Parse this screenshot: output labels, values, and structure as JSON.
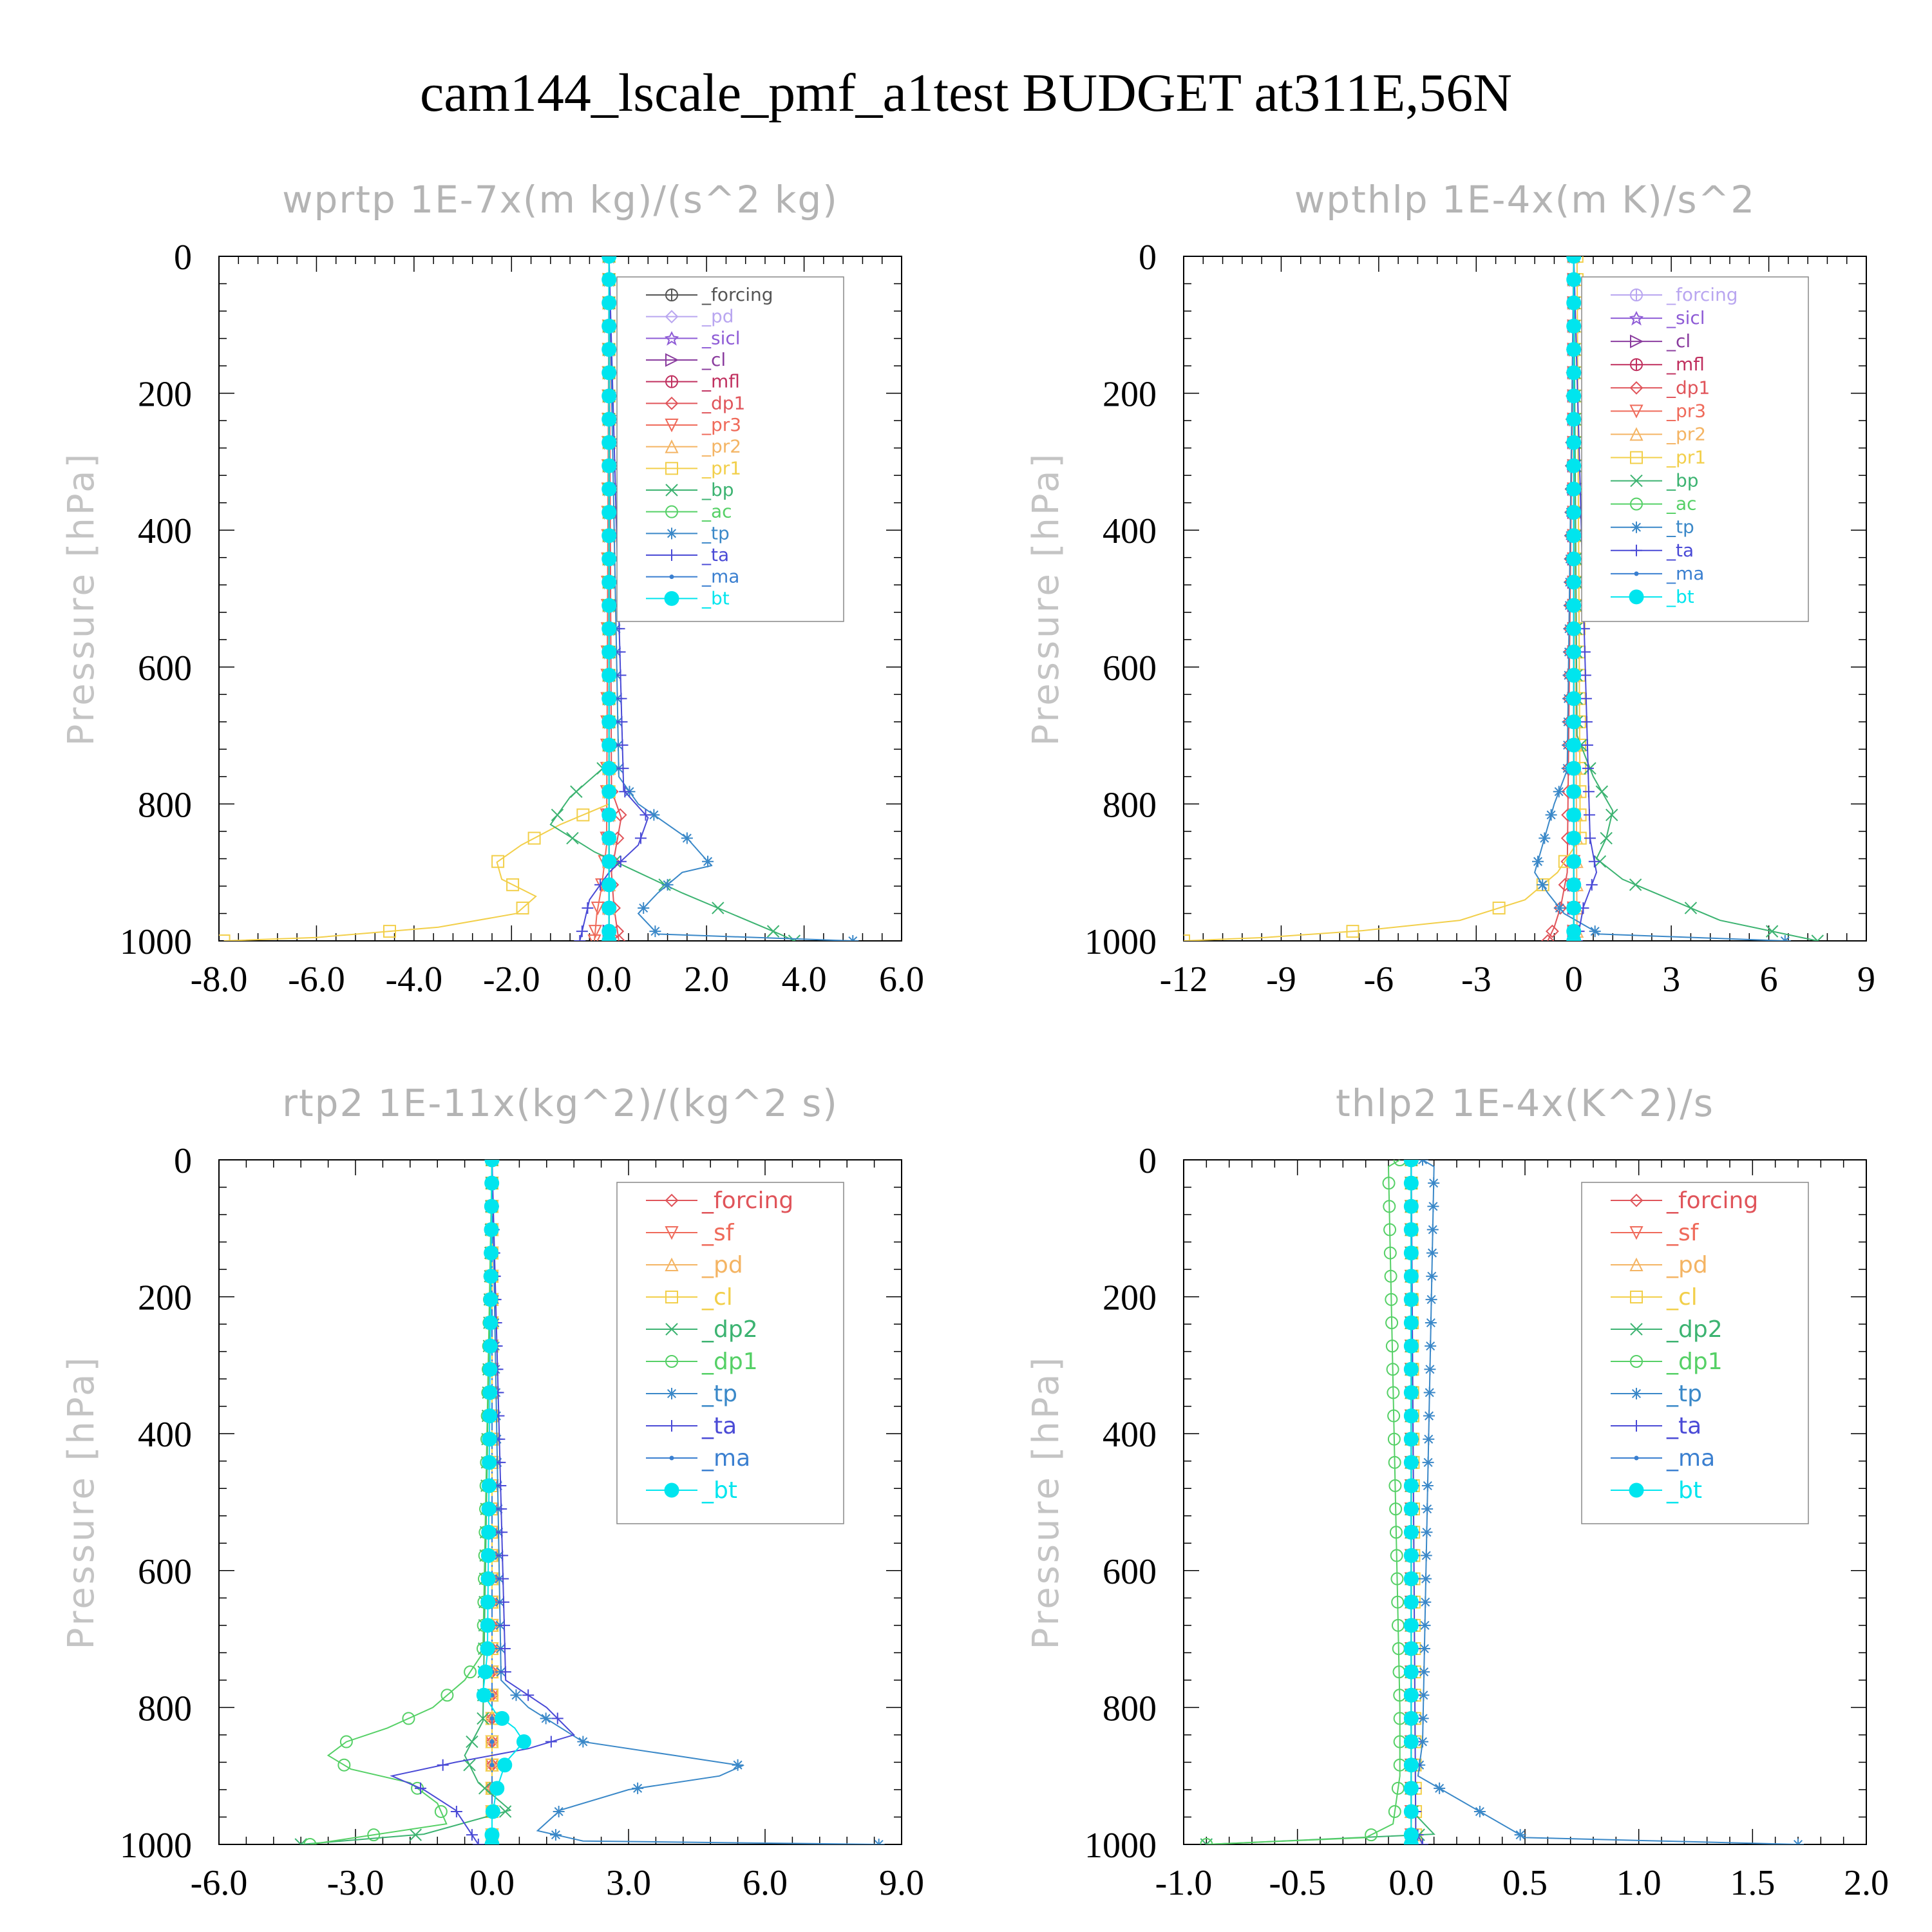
{
  "title": "cam144_lscale_pmf_a1test  BUDGET at311E,56N",
  "chart_data": [
    {
      "type": "line",
      "title": "wprtp  1E-7x(m kg)/(s^2 kg)",
      "ylabel": "Pressure [hPa]",
      "xlim": [
        -8,
        6
      ],
      "ylim": [
        0,
        1000
      ],
      "y_inverted": true,
      "xticks": [
        "-8.0",
        "-6.0",
        "-4.0",
        "-2.0",
        "0.0",
        "2.0",
        "4.0",
        "6.0"
      ],
      "xtick_values": [
        -8,
        -6,
        -4,
        -2,
        0,
        2,
        4,
        6
      ],
      "yticks": [
        "0",
        "200",
        "400",
        "600",
        "800",
        "1000"
      ],
      "legend_placement": "upper-right",
      "legend": [
        "_forcing",
        "_pd",
        "_sicl",
        "_cl",
        "_mfl",
        "_dp1",
        "_pr3",
        "_pr2",
        "_pr1",
        "_bp",
        "_ac",
        "_tp",
        "_ta",
        "_ma",
        "_bt"
      ],
      "series": [
        {
          "name": "_forcing",
          "color": "#555555",
          "marker": "circle-plus",
          "y": [
            0,
            1000
          ],
          "x": [
            0,
            0
          ]
        },
        {
          "name": "_pd",
          "color": "#b9a6f0",
          "marker": "diamond",
          "y": [
            0,
            1000
          ],
          "x": [
            0,
            0
          ]
        },
        {
          "name": "_sicl",
          "color": "#8e5bd6",
          "marker": "star",
          "y": [
            0,
            1000
          ],
          "x": [
            0,
            0
          ]
        },
        {
          "name": "_cl",
          "color": "#8a3c9e",
          "marker": "triangle-right",
          "y": [
            0,
            1000
          ],
          "x": [
            0,
            0
          ]
        },
        {
          "name": "_mfl",
          "color": "#c0305f",
          "marker": "circle-plus",
          "y": [
            0,
            1000
          ],
          "x": [
            0,
            0
          ]
        },
        {
          "name": "_dp1",
          "color": "#e0545a",
          "marker": "diamond",
          "y": [
            0,
            780,
            820,
            860,
            900,
            950,
            1000
          ],
          "x": [
            0,
            0.05,
            0.25,
            0.15,
            0.05,
            0.1,
            0.2
          ]
        },
        {
          "name": "_pr3",
          "color": "#ef6a5a",
          "marker": "triangle-down",
          "y": [
            0,
            860,
            920,
            960,
            1000
          ],
          "x": [
            0,
            -0.05,
            -0.15,
            -0.25,
            -0.3
          ]
        },
        {
          "name": "_pr2",
          "color": "#f4b463",
          "marker": "triangle",
          "y": [
            0,
            1000
          ],
          "x": [
            0,
            0
          ]
        },
        {
          "name": "_pr1",
          "color": "#f2cf4a",
          "marker": "square",
          "y": [
            0,
            800,
            830,
            860,
            885,
            910,
            935,
            960,
            980,
            995,
            1000
          ],
          "x": [
            0,
            0,
            -1,
            -1.8,
            -2.3,
            -2.2,
            -1.5,
            -1.9,
            -3.5,
            -6.0,
            -7.9
          ]
        },
        {
          "name": "_bp",
          "color": "#3cb371",
          "marker": "x",
          "y": [
            0,
            740,
            790,
            830,
            870,
            900,
            930,
            960,
            990,
            1000
          ],
          "x": [
            0,
            0,
            -0.8,
            -1.2,
            -0.3,
            0.6,
            1.5,
            2.5,
            3.5,
            3.8
          ]
        },
        {
          "name": "_ac",
          "color": "#55d066",
          "marker": "circle",
          "y": [
            0,
            1000
          ],
          "x": [
            0,
            0
          ]
        },
        {
          "name": "_tp",
          "color": "#3a88c8",
          "marker": "asterisk",
          "y": [
            0,
            760,
            800,
            850,
            890,
            900,
            930,
            960,
            990,
            1000
          ],
          "x": [
            0,
            0.2,
            0.6,
            1.6,
            2.1,
            1.5,
            1.0,
            0.6,
            1.0,
            5.0
          ]
        },
        {
          "name": "_ta",
          "color": "#4a4ad6",
          "marker": "plus",
          "y": [
            0,
            780,
            820,
            860,
            900,
            940,
            970,
            1000
          ],
          "x": [
            0,
            0.3,
            0.8,
            0.6,
            0,
            -0.4,
            -0.5,
            -0.6
          ]
        },
        {
          "name": "_ma",
          "color": "#3a7fd0",
          "marker": "dot",
          "y": [
            0,
            1000
          ],
          "x": [
            0,
            0
          ]
        },
        {
          "name": "_bt",
          "color": "#00e5ee",
          "marker": "filled-circle",
          "y": [
            0,
            1000
          ],
          "x": [
            0,
            0
          ]
        }
      ]
    },
    {
      "type": "line",
      "title": "wpthlp  1E-4x(m K)/s^2",
      "ylabel": "Pressure [hPa]",
      "xlim": [
        -12,
        9
      ],
      "ylim": [
        0,
        1000
      ],
      "y_inverted": true,
      "xticks": [
        "-12",
        "-9",
        "-6",
        "-3",
        "0",
        "3",
        "6",
        "9"
      ],
      "xtick_values": [
        -12,
        -9,
        -6,
        -3,
        0,
        3,
        6,
        9
      ],
      "yticks": [
        "0",
        "200",
        "400",
        "600",
        "800",
        "1000"
      ],
      "legend_placement": "upper-right",
      "legend": [
        "_forcing",
        "_sicl",
        "_cl",
        "_mfl",
        "_dp1",
        "_pr3",
        "_pr2",
        "_pr1",
        "_bp",
        "_ac",
        "_tp",
        "_ta",
        "_ma",
        "_bt"
      ],
      "series": [
        {
          "name": "_forcing",
          "color": "#b9a6f0",
          "marker": "circle-plus",
          "y": [
            0,
            1000
          ],
          "x": [
            0,
            0
          ]
        },
        {
          "name": "_sicl",
          "color": "#8e5bd6",
          "marker": "star",
          "y": [
            0,
            1000
          ],
          "x": [
            0,
            0
          ]
        },
        {
          "name": "_cl",
          "color": "#8a3c9e",
          "marker": "triangle-right",
          "y": [
            0,
            1000
          ],
          "x": [
            0,
            0
          ]
        },
        {
          "name": "_mfl",
          "color": "#c0305f",
          "marker": "circle-plus",
          "y": [
            0,
            1000
          ],
          "x": [
            0,
            0
          ]
        },
        {
          "name": "_dp1",
          "color": "#e0545a",
          "marker": "diamond",
          "y": [
            0,
            900,
            950,
            980,
            1000
          ],
          "x": [
            0,
            -0.2,
            -0.4,
            -0.6,
            -0.8
          ]
        },
        {
          "name": "_pr3",
          "color": "#ef6a5a",
          "marker": "triangle-down",
          "y": [
            0,
            1000
          ],
          "x": [
            0,
            0
          ]
        },
        {
          "name": "_pr2",
          "color": "#f4b463",
          "marker": "triangle",
          "y": [
            0,
            1000
          ],
          "x": [
            0,
            0.1
          ]
        },
        {
          "name": "_pr1",
          "color": "#f2cf4a",
          "marker": "square",
          "y": [
            0,
            850,
            900,
            940,
            970,
            985,
            995,
            1000
          ],
          "x": [
            0.1,
            0.2,
            -0.5,
            -1.5,
            -3.5,
            -6.5,
            -9.5,
            -12
          ]
        },
        {
          "name": "_bp",
          "color": "#3cb371",
          "marker": "x",
          "y": [
            0,
            700,
            760,
            810,
            850,
            880,
            910,
            940,
            970,
            990,
            1000
          ],
          "x": [
            0,
            0.1,
            0.6,
            1.2,
            1.0,
            0.7,
            1.5,
            3.0,
            4.5,
            6.5,
            7.5
          ]
        },
        {
          "name": "_ac",
          "color": "#55d066",
          "marker": "circle",
          "y": [
            0,
            1000
          ],
          "x": [
            0,
            0
          ]
        },
        {
          "name": "_tp",
          "color": "#3a88c8",
          "marker": "asterisk",
          "y": [
            0,
            750,
            800,
            850,
            900,
            930,
            960,
            990,
            1000
          ],
          "x": [
            0,
            -0.2,
            -0.6,
            -0.9,
            -1.2,
            -0.8,
            -0.3,
            0.8,
            6.5
          ]
        },
        {
          "name": "_ta",
          "color": "#4a4ad6",
          "marker": "plus",
          "y": [
            0,
            850,
            900,
            950,
            1000
          ],
          "x": [
            0,
            0.5,
            0.7,
            0.3,
            0.1
          ]
        },
        {
          "name": "_ma",
          "color": "#3a7fd0",
          "marker": "dot",
          "y": [
            0,
            1000
          ],
          "x": [
            0,
            0
          ]
        },
        {
          "name": "_bt",
          "color": "#00e5ee",
          "marker": "filled-circle",
          "y": [
            0,
            1000
          ],
          "x": [
            0,
            0
          ]
        }
      ]
    },
    {
      "type": "line",
      "title": "rtp2  1E-11x(kg^2)/(kg^2 s)",
      "ylabel": "Pressure [hPa]",
      "xlim": [
        -6,
        9
      ],
      "ylim": [
        0,
        1000
      ],
      "y_inverted": true,
      "xticks": [
        "-6.0",
        "-3.0",
        "0.0",
        "3.0",
        "6.0",
        "9.0"
      ],
      "xtick_values": [
        -6,
        -3,
        0,
        3,
        6,
        9
      ],
      "yticks": [
        "0",
        "200",
        "400",
        "600",
        "800",
        "1000"
      ],
      "legend_placement": "upper-right",
      "legend": [
        "_forcing",
        "_sf",
        "_pd",
        "_cl",
        "_dp2",
        "_dp1",
        "_tp",
        "_ta",
        "_ma",
        "_bt"
      ],
      "series": [
        {
          "name": "_forcing",
          "color": "#e0545a",
          "marker": "diamond",
          "y": [
            0,
            1000
          ],
          "x": [
            0,
            0
          ]
        },
        {
          "name": "_sf",
          "color": "#ef6a5a",
          "marker": "triangle-down",
          "y": [
            0,
            1000
          ],
          "x": [
            0,
            0
          ]
        },
        {
          "name": "_pd",
          "color": "#f4b463",
          "marker": "triangle",
          "y": [
            0,
            1000
          ],
          "x": [
            0,
            0
          ]
        },
        {
          "name": "_cl",
          "color": "#f2cf4a",
          "marker": "square",
          "y": [
            0,
            1000
          ],
          "x": [
            0,
            0
          ]
        },
        {
          "name": "_dp2",
          "color": "#3cb371",
          "marker": "x",
          "y": [
            0,
            820,
            870,
            910,
            950,
            985,
            1000
          ],
          "x": [
            0,
            -0.2,
            -0.6,
            -0.3,
            0.4,
            -1.5,
            -4.2
          ]
        },
        {
          "name": "_dp1",
          "color": "#55d066",
          "marker": "circle",
          "y": [
            0,
            720,
            760,
            800,
            830,
            850,
            870,
            890,
            910,
            940,
            970,
            1000
          ],
          "x": [
            0,
            -0.2,
            -0.6,
            -1.3,
            -2.3,
            -3.2,
            -3.6,
            -3.1,
            -1.8,
            -1.2,
            -1.0,
            -4.0
          ]
        },
        {
          "name": "_tp",
          "color": "#3a88c8",
          "marker": "asterisk",
          "y": [
            0,
            760,
            800,
            850,
            870,
            885,
            900,
            920,
            950,
            980,
            995,
            1000
          ],
          "x": [
            0,
            0.2,
            0.8,
            2.0,
            4.0,
            5.5,
            5.0,
            3.0,
            1.5,
            1.0,
            2.0,
            8.5
          ]
        },
        {
          "name": "_ta",
          "color": "#4a4ad6",
          "marker": "plus",
          "y": [
            0,
            760,
            800,
            840,
            860,
            880,
            900,
            920,
            950,
            980,
            1000
          ],
          "x": [
            0,
            0.3,
            1.2,
            1.8,
            0.8,
            -0.8,
            -2.2,
            -1.5,
            -0.8,
            -0.5,
            -0.3
          ]
        },
        {
          "name": "_ma",
          "color": "#3a7fd0",
          "marker": "dot",
          "y": [
            0,
            1000
          ],
          "x": [
            0,
            0
          ]
        },
        {
          "name": "_bt",
          "color": "#00e5ee",
          "marker": "filled-circle",
          "y": [
            0,
            720,
            780,
            810,
            830,
            850,
            880,
            920,
            960,
            1000
          ],
          "x": [
            0,
            -0.1,
            -0.2,
            0.1,
            0.5,
            0.7,
            0.3,
            0.1,
            0,
            0
          ]
        }
      ]
    },
    {
      "type": "line",
      "title": "thlp2  1E-4x(K^2)/s",
      "ylabel": "Pressure [hPa]",
      "xlim": [
        -1,
        2
      ],
      "ylim": [
        0,
        1000
      ],
      "y_inverted": true,
      "xticks": [
        "-1.0",
        "-0.5",
        "0.0",
        "0.5",
        "1.0",
        "1.5",
        "2.0"
      ],
      "xtick_values": [
        -1,
        -0.5,
        0,
        0.5,
        1,
        1.5,
        2
      ],
      "yticks": [
        "0",
        "200",
        "400",
        "600",
        "800",
        "1000"
      ],
      "legend_placement": "upper-right",
      "legend": [
        "_forcing",
        "_sf",
        "_pd",
        "_cl",
        "_dp2",
        "_dp1",
        "_tp",
        "_ta",
        "_ma",
        "_bt"
      ],
      "series": [
        {
          "name": "_forcing",
          "color": "#e0545a",
          "marker": "diamond",
          "y": [
            0,
            1000
          ],
          "x": [
            0,
            0
          ]
        },
        {
          "name": "_sf",
          "color": "#ef6a5a",
          "marker": "triangle-down",
          "y": [
            0,
            1000
          ],
          "x": [
            0,
            0
          ]
        },
        {
          "name": "_pd",
          "color": "#f4b463",
          "marker": "triangle",
          "y": [
            0,
            1000
          ],
          "x": [
            0,
            0
          ]
        },
        {
          "name": "_cl",
          "color": "#f2cf4a",
          "marker": "square",
          "y": [
            0,
            1000
          ],
          "x": [
            0,
            0.02
          ]
        },
        {
          "name": "_dp2",
          "color": "#3cb371",
          "marker": "x",
          "y": [
            0,
            950,
            985,
            1000
          ],
          "x": [
            0,
            0,
            0.1,
            -0.9
          ]
        },
        {
          "name": "_dp1",
          "color": "#55d066",
          "marker": "circle",
          "y": [
            0,
            10,
            800,
            900,
            970,
            990,
            1000
          ],
          "x": [
            -0.05,
            -0.1,
            -0.05,
            -0.05,
            -0.08,
            -0.2,
            -0.9
          ]
        },
        {
          "name": "_tp",
          "color": "#3a88c8",
          "marker": "asterisk",
          "y": [
            0,
            10,
            850,
            900,
            990,
            1000
          ],
          "x": [
            0.05,
            0.1,
            0.05,
            0.03,
            0.5,
            1.7
          ]
        },
        {
          "name": "_ta",
          "color": "#4a4ad6",
          "marker": "plus",
          "y": [
            0,
            980,
            1000
          ],
          "x": [
            0,
            0.02,
            0.05
          ]
        },
        {
          "name": "_ma",
          "color": "#3a7fd0",
          "marker": "dot",
          "y": [
            0,
            1000
          ],
          "x": [
            0,
            0
          ]
        },
        {
          "name": "_bt",
          "color": "#00e5ee",
          "marker": "filled-circle",
          "y": [
            0,
            1000
          ],
          "x": [
            0,
            0
          ]
        }
      ]
    }
  ]
}
